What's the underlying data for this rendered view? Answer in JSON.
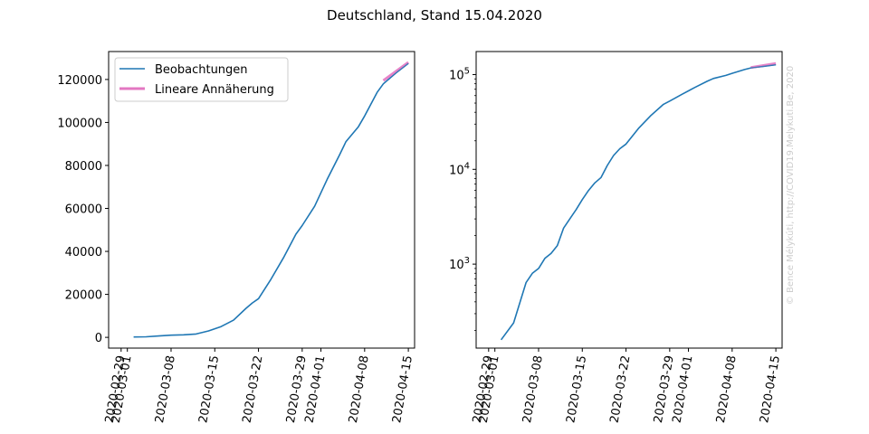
{
  "figure": {
    "title": "Deutschland, Stand 15.04.2020",
    "credit": "© Bence Mélykúti, http://COVID19.Melykuti.Be, 2020"
  },
  "colors": {
    "observations": "#1f77b4",
    "fit": "#e377c2"
  },
  "chart_data": [
    {
      "type": "line",
      "title": "",
      "xlabel": "",
      "ylabel": "",
      "yscale": "linear",
      "xlim": [
        "2020-02-27",
        "2020-04-16"
      ],
      "ylim": [
        -5000,
        133000
      ],
      "x_ticks": [
        "2020-02-29",
        "2020-03-01",
        "2020-03-08",
        "2020-03-15",
        "2020-03-22",
        "2020-03-29",
        "2020-04-01",
        "2020-04-08",
        "2020-04-15"
      ],
      "y_ticks": [
        0,
        20000,
        40000,
        60000,
        80000,
        100000,
        120000
      ],
      "y_tick_labels": [
        "0",
        "20000",
        "40000",
        "60000",
        "80000",
        "100000",
        "120000"
      ],
      "legend": {
        "placement": "top-left",
        "entries": [
          "Beobachtungen",
          "Lineare Annäherung"
        ]
      },
      "grid": false,
      "series": [
        {
          "name": "Beobachtungen",
          "x": [
            "2020-03-02",
            "2020-03-04",
            "2020-03-06",
            "2020-03-08",
            "2020-03-10",
            "2020-03-12",
            "2020-03-14",
            "2020-03-16",
            "2020-03-18",
            "2020-03-20",
            "2020-03-21",
            "2020-03-22",
            "2020-03-24",
            "2020-03-26",
            "2020-03-28",
            "2020-03-29",
            "2020-03-31",
            "2020-04-02",
            "2020-04-04",
            "2020-04-05",
            "2020-04-07",
            "2020-04-08",
            "2020-04-10",
            "2020-04-11",
            "2020-04-13",
            "2020-04-15"
          ],
          "y": [
            159,
            239,
            636,
            1000,
            1200,
            1567,
            3000,
            5000,
            8000,
            13500,
            16000,
            18000,
            27000,
            37000,
            48000,
            52000,
            61000,
            73500,
            85000,
            91000,
            98000,
            103000,
            114000,
            118000,
            123000,
            127500
          ]
        },
        {
          "name": "Lineare Annäherung",
          "x": [
            "2020-04-11",
            "2020-04-15"
          ],
          "y": [
            119500,
            128000
          ]
        }
      ]
    },
    {
      "type": "line",
      "title": "",
      "xlabel": "",
      "ylabel": "",
      "yscale": "log",
      "xlim": [
        "2020-02-27",
        "2020-04-16"
      ],
      "ylim": [
        130,
        175000
      ],
      "x_ticks": [
        "2020-02-29",
        "2020-03-01",
        "2020-03-08",
        "2020-03-15",
        "2020-03-22",
        "2020-03-29",
        "2020-04-01",
        "2020-04-08",
        "2020-04-15"
      ],
      "y_ticks": [
        1000,
        10000,
        100000
      ],
      "y_tick_labels": [
        "10^3",
        "10^4",
        "10^5"
      ],
      "legend": null,
      "grid": false,
      "series": [
        {
          "name": "Beobachtungen",
          "x": [
            "2020-03-02",
            "2020-03-04",
            "2020-03-06",
            "2020-03-07",
            "2020-03-08",
            "2020-03-09",
            "2020-03-10",
            "2020-03-11",
            "2020-03-12",
            "2020-03-13",
            "2020-03-14",
            "2020-03-15",
            "2020-03-16",
            "2020-03-17",
            "2020-03-18",
            "2020-03-19",
            "2020-03-20",
            "2020-03-21",
            "2020-03-22",
            "2020-03-24",
            "2020-03-26",
            "2020-03-28",
            "2020-03-29",
            "2020-03-31",
            "2020-04-02",
            "2020-04-04",
            "2020-04-05",
            "2020-04-07",
            "2020-04-08",
            "2020-04-10",
            "2020-04-11",
            "2020-04-13",
            "2020-04-15"
          ],
          "y": [
            159,
            240,
            640,
            800,
            900,
            1150,
            1300,
            1570,
            2400,
            3000,
            3750,
            4800,
            6000,
            7200,
            8200,
            11000,
            14000,
            16500,
            18500,
            27000,
            37000,
            48500,
            52500,
            62000,
            73000,
            85000,
            91000,
            98000,
            103000,
            113000,
            117500,
            122000,
            127000
          ]
        },
        {
          "name": "Lineare Annäherung",
          "x": [
            "2020-04-11",
            "2020-04-15"
          ],
          "y": [
            118500,
            131000
          ]
        }
      ]
    }
  ]
}
